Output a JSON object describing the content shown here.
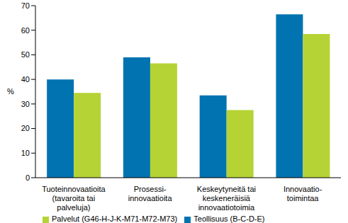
{
  "chart_data": {
    "type": "bar",
    "y_label": "%",
    "categories": [
      "Tuoteinnovaatioita\n(tavaroita tai\npalveluja)",
      "Prosessi-\ninnovaatioita",
      "Keskeytyneitä tai\nkeskeneräisiä\ninnovaatiotoimia",
      "Innovaatio-\ntoimintaa"
    ],
    "series": [
      {
        "name": "Teollisuus (B-C-D-E)",
        "color": "#0073b0",
        "values": [
          40,
          49,
          33.5,
          66.5
        ]
      },
      {
        "name": "Palvelut (G46-H-J-K-M71-M72-M73)",
        "color": "#b5d334",
        "values": [
          34.5,
          46.5,
          27.5,
          58.5
        ]
      }
    ],
    "ylim": [
      0,
      70
    ],
    "yticks": [
      0,
      10,
      20,
      30,
      40,
      50,
      60,
      70
    ],
    "grid": false,
    "legend": "bottom-left"
  }
}
